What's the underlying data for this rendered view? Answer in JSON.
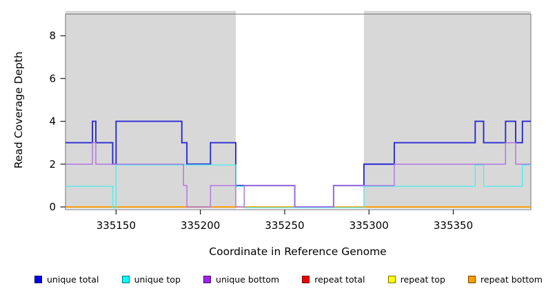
{
  "axes": {
    "y_title": "Read Coverage Depth",
    "x_title": "Coordinate in Reference Genome",
    "x_ticks": [
      {
        "value": 335150,
        "label": "335150"
      },
      {
        "value": 335200,
        "label": "335200"
      },
      {
        "value": 335250,
        "label": "335250"
      },
      {
        "value": 335300,
        "label": "335300"
      },
      {
        "value": 335350,
        "label": "335350"
      }
    ],
    "y_ticks": [
      {
        "value": 0,
        "label": "0"
      },
      {
        "value": 2,
        "label": "2"
      },
      {
        "value": 4,
        "label": "4"
      },
      {
        "value": 6,
        "label": "6"
      },
      {
        "value": 8,
        "label": "8"
      }
    ]
  },
  "legend": {
    "items": [
      {
        "label": "unique total",
        "color": "#0000ee"
      },
      {
        "label": "unique top",
        "color": "#00ffff"
      },
      {
        "label": "unique bottom",
        "color": "#a020f0"
      },
      {
        "label": "repeat total",
        "color": "#ee0000"
      },
      {
        "label": "repeat top",
        "color": "#ffff00"
      },
      {
        "label": "repeat bottom",
        "color": "#ff9d00"
      }
    ]
  },
  "chart_data": {
    "type": "line",
    "subtype": "step",
    "title": "",
    "xlabel": "Coordinate in Reference Genome",
    "ylabel": "Read Coverage Depth",
    "x_range": [
      335120,
      335396
    ],
    "ylim": [
      0,
      9
    ],
    "grid": false,
    "legend_position": "bottom",
    "background_color": "#ffffff",
    "repeat_region_color": "#d8d8d8",
    "repeat_regions": [
      [
        335120,
        335221
      ],
      [
        335297,
        335396
      ]
    ],
    "series": [
      {
        "name": "repeat total",
        "color": "#cc2222",
        "steps": [
          [
            335120,
            0
          ]
        ]
      },
      {
        "name": "repeat top",
        "color": "#eeee00",
        "steps": [
          [
            335120,
            0
          ]
        ]
      },
      {
        "name": "repeat bottom",
        "color": "#ff9d00",
        "steps": [
          [
            335120,
            0
          ]
        ]
      },
      {
        "name": "unique total",
        "color": "#2828d4",
        "steps": [
          [
            335120,
            3
          ],
          [
            335136,
            4
          ],
          [
            335138,
            3
          ],
          [
            335148,
            2
          ],
          [
            335150,
            4
          ],
          [
            335189,
            3
          ],
          [
            335192,
            2
          ],
          [
            335206,
            3
          ],
          [
            335221,
            1
          ],
          [
            335256,
            0
          ],
          [
            335279,
            1
          ],
          [
            335297,
            2
          ],
          [
            335315,
            3
          ],
          [
            335363,
            4
          ],
          [
            335368,
            3
          ],
          [
            335381,
            4
          ],
          [
            335387,
            3
          ],
          [
            335391,
            4
          ]
        ]
      },
      {
        "name": "unique top",
        "color": "#5ceaea",
        "steps": [
          [
            335120,
            1
          ],
          [
            335148,
            0
          ],
          [
            335150,
            2
          ],
          [
            335221,
            1
          ],
          [
            335226,
            0
          ],
          [
            335297,
            1
          ],
          [
            335363,
            2
          ],
          [
            335368,
            1
          ],
          [
            335391,
            2
          ]
        ]
      },
      {
        "name": "unique bottom",
        "color": "#b175e2",
        "steps": [
          [
            335120,
            2
          ],
          [
            335136,
            3
          ],
          [
            335138,
            2
          ],
          [
            335190,
            1
          ],
          [
            335192,
            0
          ],
          [
            335206,
            1
          ],
          [
            335221,
            0
          ],
          [
            335226,
            1
          ],
          [
            335256,
            0
          ],
          [
            335279,
            1
          ],
          [
            335315,
            2
          ],
          [
            335381,
            3
          ],
          [
            335387,
            2
          ]
        ]
      }
    ]
  }
}
